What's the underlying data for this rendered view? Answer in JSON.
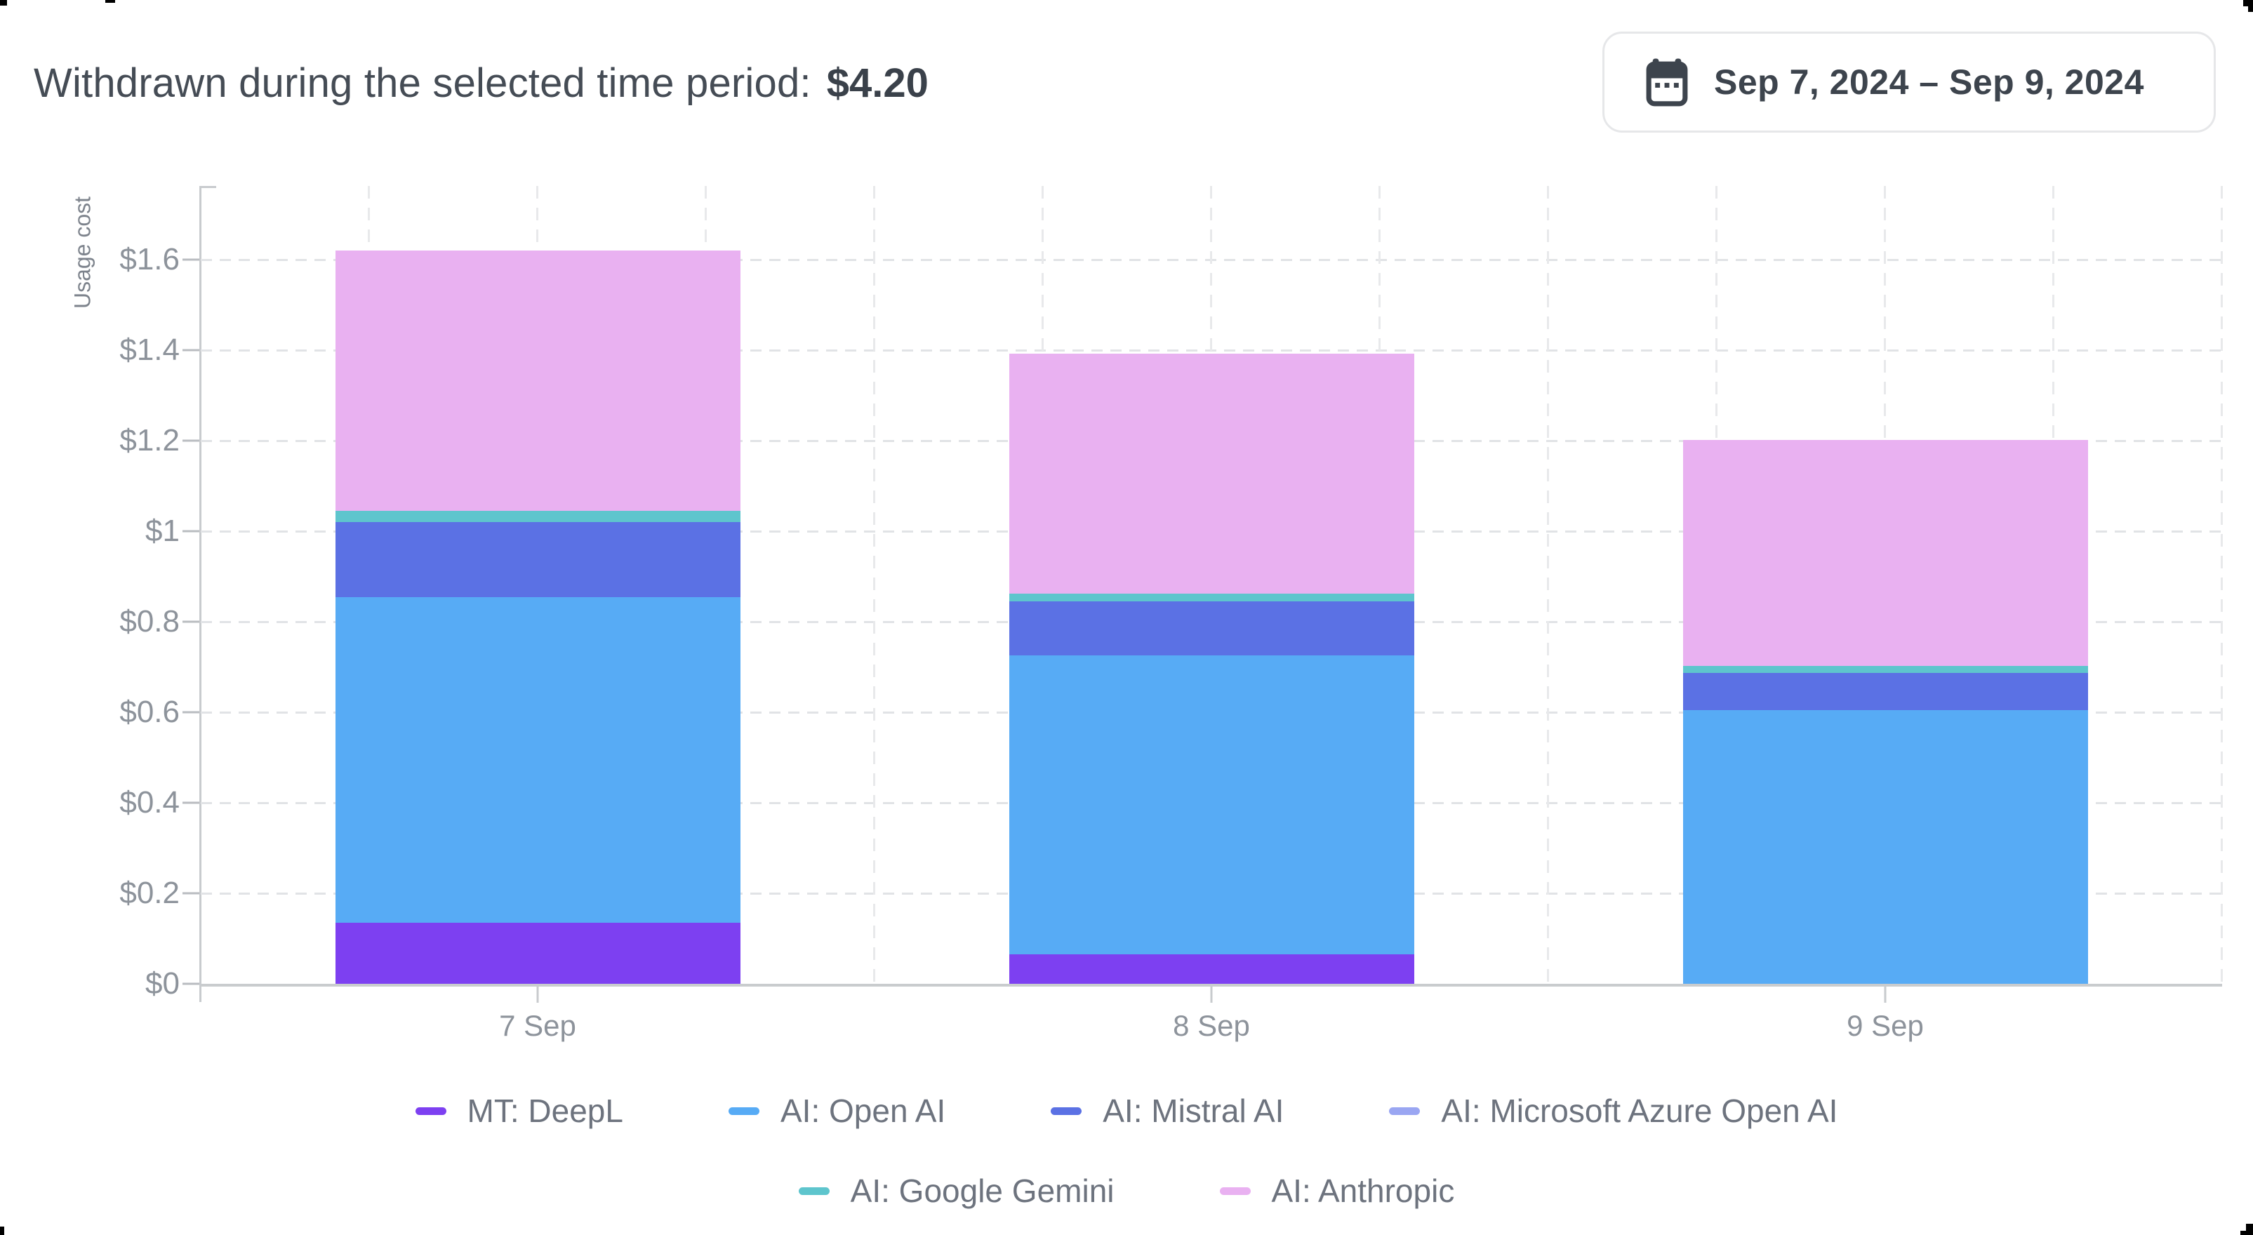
{
  "header": {
    "label": "Withdrawn during the selected time period:",
    "amount": "$4.20"
  },
  "date_picker": {
    "icon": "calendar-icon",
    "range_label": "Sep 7, 2024 – Sep 9, 2024"
  },
  "chart_data": {
    "type": "bar",
    "stacked": true,
    "title": "",
    "xlabel": "",
    "ylabel": "Usage cost",
    "categories": [
      "7 Sep",
      "8 Sep",
      "9 Sep"
    ],
    "series": [
      {
        "name": "MT: DeepL",
        "color": "#7d40f1",
        "values": [
          0.135,
          0.065,
          0
        ]
      },
      {
        "name": "AI: Open AI",
        "color": "#57abf5",
        "values": [
          0.72,
          0.66,
          0.605
        ]
      },
      {
        "name": "AI: Mistral AI",
        "color": "#5b71e4",
        "values": [
          0.165,
          0.12,
          0.082
        ]
      },
      {
        "name": "AI: Microsoft Azure Open AI",
        "color": "#9aa6f2",
        "values": [
          0,
          0,
          0
        ]
      },
      {
        "name": "AI: Google Gemini",
        "color": "#5ec5cd",
        "values": [
          0.025,
          0.017,
          0.015
        ]
      },
      {
        "name": "AI: Anthropic",
        "color": "#e9b1f1",
        "values": [
          0.575,
          0.53,
          0.5
        ]
      }
    ],
    "y_tick_labels": [
      "$0",
      "$0.2",
      "$0.4",
      "$0.6",
      "$0.8",
      "$1",
      "$1.2",
      "$1.4",
      "$1.6"
    ],
    "y_tick_values": [
      0,
      0.2,
      0.4,
      0.6,
      0.8,
      1.0,
      1.2,
      1.4,
      1.6
    ],
    "ylim": [
      0,
      1.76
    ],
    "grid": true,
    "legend_position": "bottom",
    "legend_rows": [
      [
        0,
        1,
        2,
        3
      ],
      [
        4,
        5
      ]
    ]
  }
}
